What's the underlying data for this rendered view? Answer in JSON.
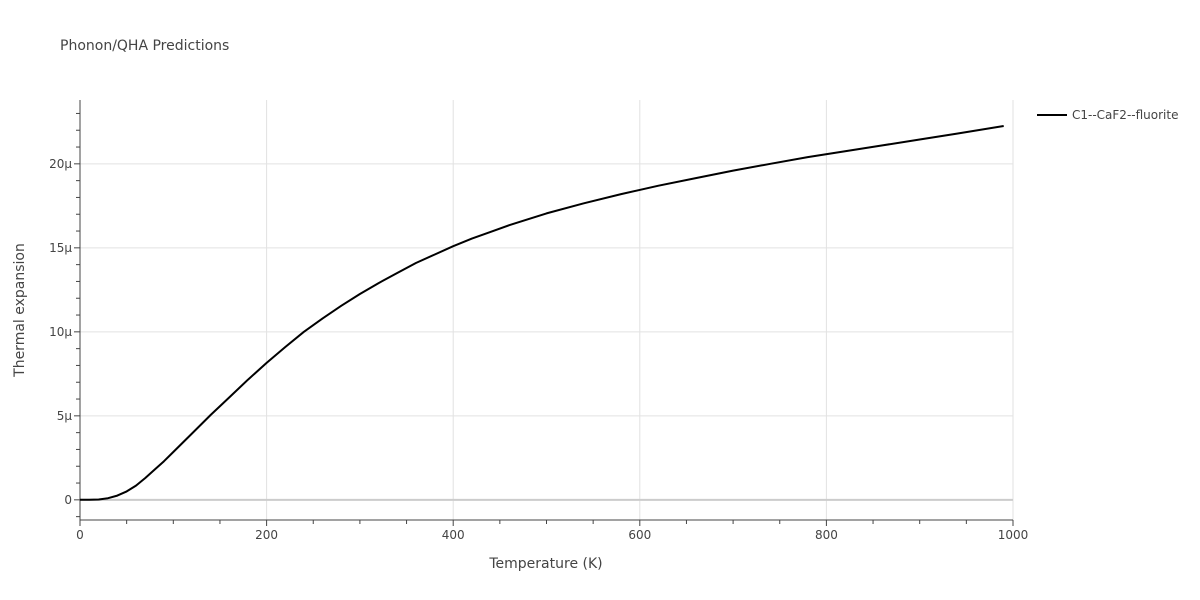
{
  "chart_data": {
    "type": "line",
    "title": "Phonon/QHA Predictions",
    "xlabel": "Temperature (K)",
    "ylabel": "Thermal expansion",
    "xlim": [
      0,
      1000
    ],
    "ylim": [
      -1.2,
      23.8
    ],
    "x_ticks": [
      0,
      200,
      400,
      600,
      800,
      1000
    ],
    "y_ticks": [
      {
        "value": 0,
        "label": "0"
      },
      {
        "value": 5,
        "label": "5μ"
      },
      {
        "value": 10,
        "label": "10μ"
      },
      {
        "value": 15,
        "label": "15μ"
      },
      {
        "value": 20,
        "label": "20μ"
      }
    ],
    "grid": true,
    "legend_position": "top-right",
    "series": [
      {
        "name": "C1--CaF2--fluorite",
        "color": "#000000",
        "x": [
          0,
          10,
          20,
          30,
          40,
          50,
          60,
          70,
          80,
          90,
          100,
          120,
          140,
          160,
          180,
          200,
          220,
          240,
          260,
          280,
          300,
          320,
          340,
          360,
          380,
          400,
          420,
          440,
          460,
          480,
          500,
          540,
          580,
          620,
          660,
          700,
          740,
          780,
          820,
          860,
          900,
          940,
          990
        ],
        "y": [
          0,
          0,
          0.02,
          0.1,
          0.25,
          0.5,
          0.85,
          1.3,
          1.8,
          2.3,
          2.85,
          3.95,
          5.05,
          6.1,
          7.15,
          8.15,
          9.1,
          10.0,
          10.8,
          11.55,
          12.25,
          12.9,
          13.5,
          14.1,
          14.6,
          15.1,
          15.55,
          15.95,
          16.35,
          16.7,
          17.05,
          17.65,
          18.2,
          18.7,
          19.15,
          19.6,
          20.0,
          20.4,
          20.75,
          21.1,
          21.45,
          21.8,
          22.25
        ]
      }
    ]
  }
}
